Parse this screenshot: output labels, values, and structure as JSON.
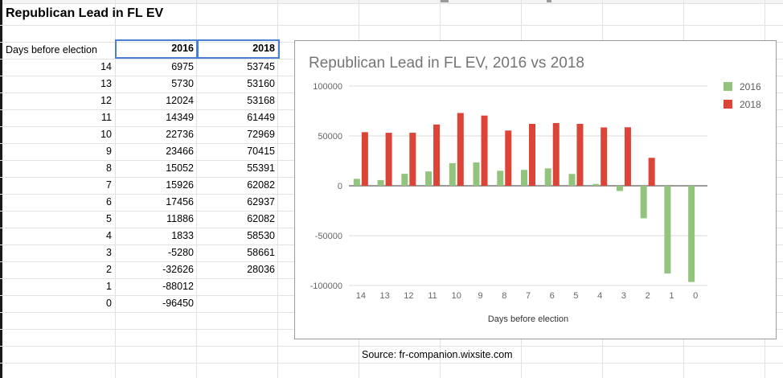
{
  "sheet": {
    "title": "Republican Lead in FL EV",
    "header": {
      "days_label": "Days before election",
      "year_a": "2016",
      "year_b": "2018"
    },
    "rows": [
      {
        "days": "14",
        "v2016": "6975",
        "v2018": "53745"
      },
      {
        "days": "13",
        "v2016": "5730",
        "v2018": "53160"
      },
      {
        "days": "12",
        "v2016": "12024",
        "v2018": "53168"
      },
      {
        "days": "11",
        "v2016": "14349",
        "v2018": "61449"
      },
      {
        "days": "10",
        "v2016": "22736",
        "v2018": "72969"
      },
      {
        "days": "9",
        "v2016": "23466",
        "v2018": "70415"
      },
      {
        "days": "8",
        "v2016": "15052",
        "v2018": "55391"
      },
      {
        "days": "7",
        "v2016": "15926",
        "v2018": "62082"
      },
      {
        "days": "6",
        "v2016": "17456",
        "v2018": "62937"
      },
      {
        "days": "5",
        "v2016": "11886",
        "v2018": "62082"
      },
      {
        "days": "4",
        "v2016": "1833",
        "v2018": "58530"
      },
      {
        "days": "3",
        "v2016": "-5280",
        "v2018": "58661"
      },
      {
        "days": "2",
        "v2016": "-32626",
        "v2018": "28036"
      },
      {
        "days": "1",
        "v2016": "-88012",
        "v2018": ""
      },
      {
        "days": "0",
        "v2016": "-96450",
        "v2018": ""
      }
    ],
    "source": "Source: fr-companion.wixsite.com"
  },
  "colors": {
    "series_2016": "#93c47d",
    "series_2018": "#db4437",
    "selection": "#4a7fd6"
  },
  "chart_data": {
    "type": "bar",
    "title": "Republican Lead in FL EV, 2016 vs 2018",
    "xlabel": "Days before election",
    "ylabel": "",
    "categories": [
      "14",
      "13",
      "12",
      "11",
      "10",
      "9",
      "8",
      "7",
      "6",
      "5",
      "4",
      "3",
      "2",
      "1",
      "0"
    ],
    "series": [
      {
        "name": "2016",
        "values": [
          6975,
          5730,
          12024,
          14349,
          22736,
          23466,
          15052,
          15926,
          17456,
          11886,
          1833,
          -5280,
          -32626,
          -88012,
          -96450
        ]
      },
      {
        "name": "2018",
        "values": [
          53745,
          53160,
          53168,
          61449,
          72969,
          70415,
          55391,
          62082,
          62937,
          62082,
          58530,
          58661,
          28036,
          null,
          null
        ]
      }
    ],
    "ylim": [
      -100000,
      100000
    ],
    "yticks": [
      "100000",
      "50000",
      "0",
      "-50000",
      "-100000"
    ],
    "legend_position": "right",
    "grid": true
  }
}
